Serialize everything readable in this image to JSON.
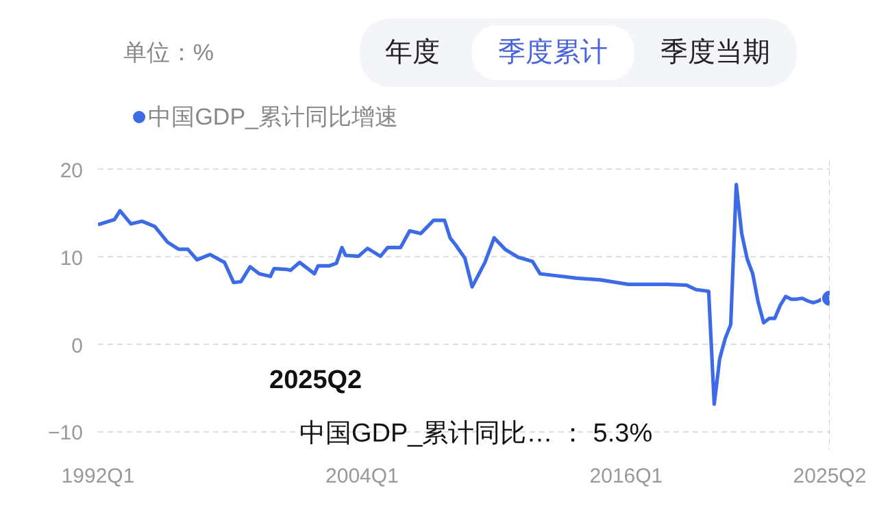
{
  "chart_data": {
    "type": "line",
    "ylabel": "单位：%",
    "x": [
      "1992-01",
      "1992-10",
      "1993-01",
      "1993-07",
      "1994-01",
      "1994-08",
      "1995-03",
      "1995-09",
      "1996-02",
      "1996-07",
      "1997-02",
      "1997-10",
      "1998-03",
      "1998-07",
      "1998-12",
      "1999-05",
      "1999-11",
      "2000-01",
      "2000-08",
      "2000-10",
      "2001-03",
      "2001-08",
      "2001-11",
      "2002-01",
      "2002-07",
      "2002-11",
      "2003-02",
      "2003-04",
      "2003-11",
      "2004-04",
      "2004-11",
      "2005-03",
      "2005-10",
      "2006-03",
      "2006-09",
      "2007-04",
      "2007-10",
      "2008-01",
      "2008-04",
      "2008-09",
      "2009-01",
      "2009-08",
      "2010-01",
      "2010-07",
      "2011-02",
      "2011-10",
      "2012-02",
      "2012-10",
      "2013-10",
      "2014-11",
      "2016-02",
      "2016-11",
      "2017-11",
      "2018-10",
      "2019-03",
      "2019-10",
      "2020-01",
      "2020-04",
      "2020-07",
      "2020-10",
      "2021-01",
      "2021-04",
      "2021-07",
      "2021-10",
      "2022-01",
      "2022-04",
      "2022-07",
      "2022-10",
      "2023-01",
      "2023-04",
      "2023-07",
      "2023-10",
      "2024-01",
      "2024-04",
      "2024-07",
      "2024-10",
      "2025-01",
      "2025-04"
    ],
    "series": [
      {
        "name": "中国GDP_累计同比增速",
        "color": "#3d6ae6",
        "values": [
          13.7,
          14.3,
          15.3,
          13.8,
          14.1,
          13.5,
          11.7,
          10.9,
          10.9,
          9.7,
          10.3,
          9.4,
          7.1,
          7.2,
          8.9,
          8.1,
          7.8,
          8.7,
          8.6,
          8.5,
          9.4,
          8.6,
          8.1,
          9.0,
          9.0,
          9.3,
          11.1,
          10.2,
          10.1,
          11.0,
          10.1,
          11.1,
          11.1,
          13.0,
          12.7,
          14.2,
          14.2,
          12.2,
          11.4,
          9.9,
          6.6,
          9.4,
          12.2,
          10.9,
          10.0,
          9.5,
          8.1,
          7.9,
          7.6,
          7.4,
          6.9,
          6.9,
          6.9,
          6.8,
          6.3,
          6.1,
          -6.8,
          -1.6,
          0.7,
          2.3,
          18.3,
          12.7,
          9.8,
          8.1,
          4.8,
          2.5,
          3.0,
          3.0,
          4.5,
          5.5,
          5.2,
          5.2,
          5.3,
          5.0,
          4.8,
          5.0,
          5.4,
          5.3
        ]
      }
    ],
    "xlim": [
      "1992-01",
      "2025-04"
    ],
    "xticks": [
      {
        "value": "1992-01",
        "label": "1992Q1"
      },
      {
        "value": "2004-01",
        "label": "2004Q1"
      },
      {
        "value": "2016-01",
        "label": "2016Q1"
      },
      {
        "value": "2025-04",
        "label": "2025Q2"
      }
    ],
    "ylim": [
      -12,
      21
    ],
    "yticks": [
      -10,
      0,
      10,
      20
    ],
    "grid": "y",
    "legend": "top left",
    "ref_lines": [
      {
        "axis": "x",
        "value": "2025-04",
        "line_style": "dashed",
        "color": "#c8ccd4"
      }
    ],
    "annotations": [
      "年度",
      "季度累计",
      "季度当期",
      "2025Q2",
      "中国GDP_累计同比…  ：  5.3%"
    ]
  }
}
